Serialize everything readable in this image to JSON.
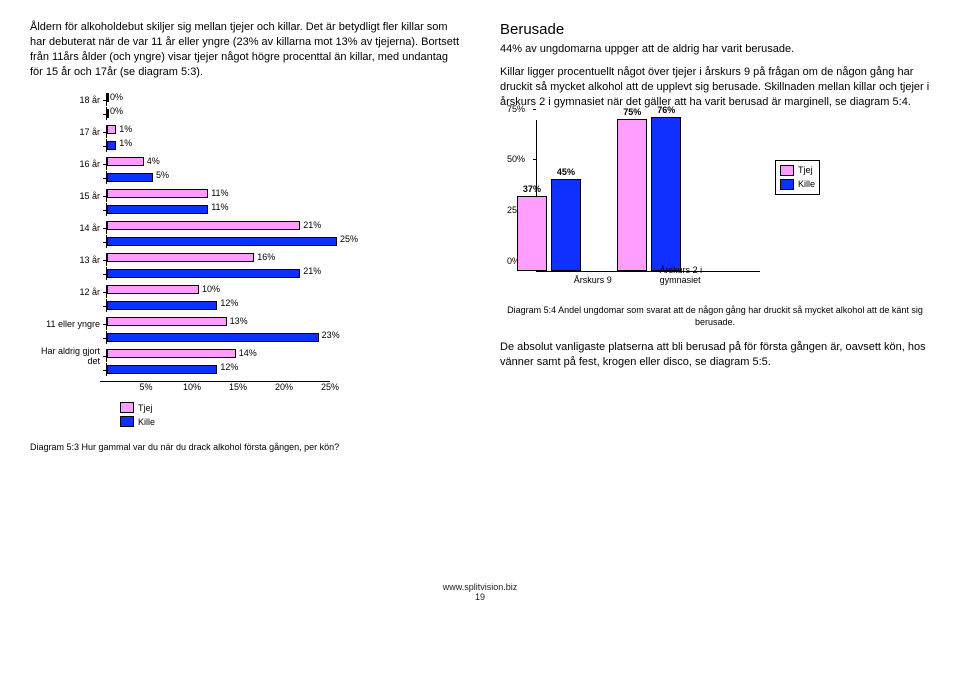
{
  "left": {
    "para1": "Åldern för alkoholdebut skiljer sig mellan tjejer och killar. Det är betydligt fler killar som har debuterat när de var 11 år eller yngre (23% av killarna mot 13% av tjejerna). Bortsett från 11års ålder (och yngre) visar tjejer något högre procenttal än killar, med undantag för 15 år och 17år (se diagram 5:3).",
    "caption53": "Diagram 5:3 Hur gammal var du när du drack alkohol första gången, per kön?"
  },
  "right": {
    "heading": "Berusade",
    "para1": "44% av ungdomarna uppger att de aldrig har varit berusade.",
    "para2": "Killar ligger procentuellt något över tjejer i årskurs 9 på frågan om de någon gång har druckit så mycket alkohol att de upplevt sig berusade. Skillnaden mellan killar och tjejer i årskurs 2 i gymnasiet när det gäller att ha varit berusad är marginell, se diagram 5:4.",
    "caption54": "Diagram 5:4 Andel ungdomar som svarat att de någon gång har druckit så mycket alkohol att de känt sig berusade.",
    "para3": "De absolut vanligaste platserna att bli berusad på för första gången är, oavsett kön, hos vänner samt på fest, krogen eller disco, se diagram 5:5."
  },
  "chart53": {
    "type": "bar-horizontal-grouped",
    "xmax": 25,
    "xticks": [
      5,
      10,
      15,
      20,
      25
    ],
    "colors": {
      "tjej": "#ff9eff",
      "kille": "#1030ff"
    },
    "series_labels": {
      "tjej": "Tjej",
      "kille": "Kille"
    },
    "rows": [
      {
        "cat": "18 år",
        "tjej": 0,
        "kille": 0
      },
      {
        "cat": "17 år",
        "tjej": 1,
        "kille": 1
      },
      {
        "cat": "16 år",
        "tjej": 4,
        "kille": 5
      },
      {
        "cat": "15 år",
        "tjej": 11,
        "kille": 11
      },
      {
        "cat": "14 år",
        "tjej": 21,
        "kille": 25
      },
      {
        "cat": "13 år",
        "tjej": 16,
        "kille": 21
      },
      {
        "cat": "12 år",
        "tjej": 10,
        "kille": 12
      },
      {
        "cat": "11 eller yngre",
        "tjej": 13,
        "kille": 23
      },
      {
        "cat": "Har aldrig gjort det",
        "tjej": 14,
        "kille": 12
      }
    ]
  },
  "chart54": {
    "type": "bar-vertical-grouped",
    "ymax": 75,
    "yticks": [
      0,
      25,
      50,
      75
    ],
    "colors": {
      "tjej": "#ff9eff",
      "kille": "#1030ff"
    },
    "series_labels": {
      "tjej": "Tjej",
      "kille": "Kille"
    },
    "groups": [
      {
        "label": "Årskurs 9",
        "tjej": 37,
        "kille": 45
      },
      {
        "label": "Årskurs 2 i gymnasiet",
        "tjej": 75,
        "kille": 76
      }
    ]
  },
  "footer": {
    "url": "www.splitvision.biz",
    "page": "19"
  }
}
